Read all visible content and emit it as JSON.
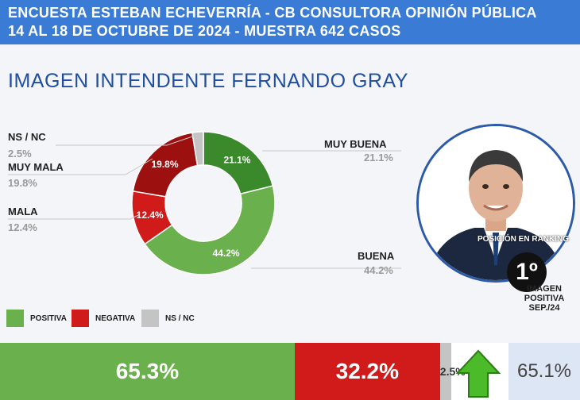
{
  "header": {
    "line1": "ENCUESTA ESTEBAN ECHEVERRÍA - CB CONSULTORA OPINIÓN PÚBLICA",
    "line2": "14 AL 18 DE OCTUBRE DE 2024 - MUESTRA 642 CASOS"
  },
  "colors": {
    "header_bg": "#3a7bd5",
    "dark_green": "#3a8a2b",
    "light_green": "#6ab04c",
    "dark_red": "#9c1010",
    "red": "#d11a1a",
    "grey": "#c4c4c4"
  },
  "chart_data": [
    {
      "type": "pie",
      "title": "IMAGEN INTENDENTE  FERNANDO GRAY",
      "slices": [
        {
          "label": "MUY BUENA",
          "value": 21.1,
          "display": "21.1%",
          "color": "#3a8a2b"
        },
        {
          "label": "BUENA",
          "value": 44.2,
          "display": "44.2%",
          "color": "#6ab04c"
        },
        {
          "label": "MALA",
          "value": 12.4,
          "display": "12.4%",
          "color": "#d11a1a"
        },
        {
          "label": "MUY MALA",
          "value": 19.8,
          "display": "19.8%",
          "color": "#9c1010"
        },
        {
          "label": "NS / NC",
          "value": 2.5,
          "display": "2.5%",
          "color": "#c4c4c4"
        }
      ]
    },
    {
      "type": "bar",
      "stacked": true,
      "orientation": "horizontal",
      "series": [
        {
          "name": "POSITIVA",
          "value": 65.3,
          "display": "65.3%",
          "color": "#6ab04c"
        },
        {
          "name": "NEGATIVA",
          "value": 32.2,
          "display": "32.2%",
          "color": "#d11a1a"
        },
        {
          "name": "NS / NC",
          "value": 2.5,
          "display": "2.5%",
          "color": "#c4c4c4"
        }
      ]
    }
  ],
  "ranking": {
    "label": "POSICIÓN EN RANKING",
    "value": "1º"
  },
  "previous": {
    "label": "IMAGEN POSITIVA SEP./24",
    "value": "65.1%"
  }
}
